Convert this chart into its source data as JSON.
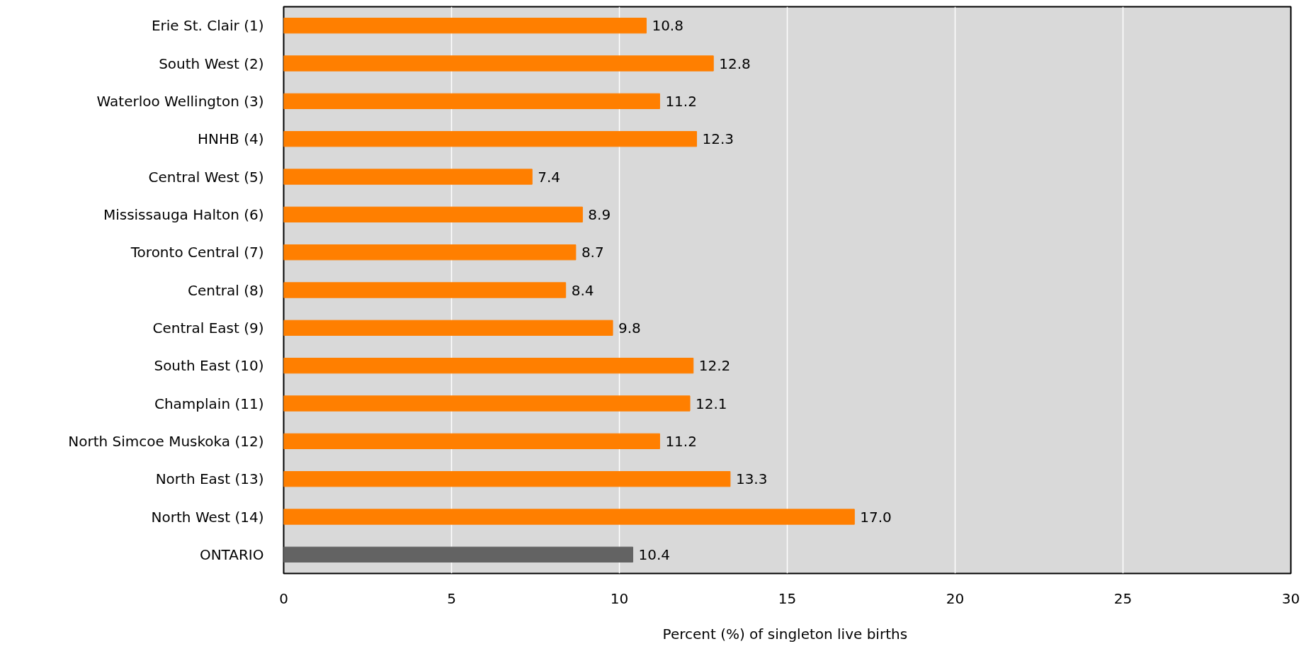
{
  "chart_data": {
    "type": "bar",
    "orientation": "horizontal",
    "xlabel": "Percent (%)  of singleton live births",
    "categories": [
      "Erie St. Clair (1)",
      "South West (2)",
      "Waterloo Wellington (3)",
      "HNHB (4)",
      "Central West (5)",
      "Mississauga Halton (6)",
      "Toronto Central (7)",
      "Central (8)",
      "Central East (9)",
      "South East (10)",
      "Champlain (11)",
      "North Simcoe Muskoka (12)",
      "North East (13)",
      "North West (14)",
      "ONTARIO"
    ],
    "values": [
      10.8,
      12.8,
      11.2,
      12.3,
      7.4,
      8.9,
      8.7,
      8.4,
      9.8,
      12.2,
      12.1,
      11.2,
      13.3,
      17.0,
      10.4
    ],
    "value_labels": [
      "10.8",
      "12.8",
      "11.2",
      "12.3",
      "7.4",
      "8.9",
      "8.7",
      "8.4",
      "9.8",
      "12.2",
      "12.1",
      "11.2",
      "13.3",
      "17.0",
      "10.4"
    ],
    "colors": [
      "#ff7f00",
      "#ff7f00",
      "#ff7f00",
      "#ff7f00",
      "#ff7f00",
      "#ff7f00",
      "#ff7f00",
      "#ff7f00",
      "#ff7f00",
      "#ff7f00",
      "#ff7f00",
      "#ff7f00",
      "#ff7f00",
      "#ff7f00",
      "#636363"
    ],
    "xlim": [
      0,
      30
    ],
    "xticks": [
      0,
      5,
      10,
      15,
      20,
      25,
      30
    ],
    "grid": "x"
  }
}
